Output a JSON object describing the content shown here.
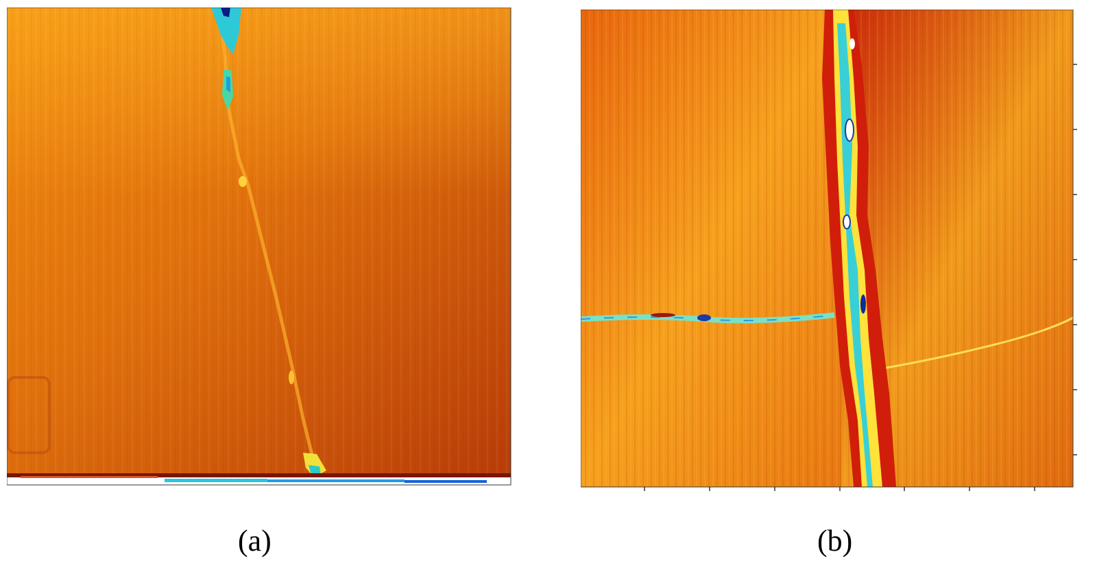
{
  "figure": {
    "panels": [
      {
        "caption": "(a)",
        "content": "thermal-colormap-image",
        "colormap": "jet",
        "dominant_color": "#e8780c"
      },
      {
        "caption": "(b)",
        "content": "thermal-colormap-image",
        "colormap": "jet",
        "dominant_color": "#f2a41c"
      }
    ]
  }
}
